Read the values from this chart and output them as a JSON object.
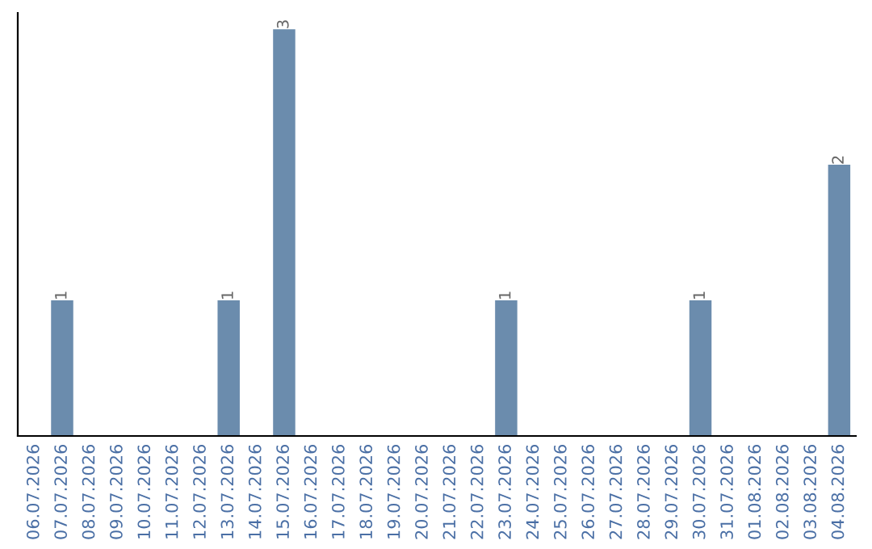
{
  "chart_data": {
    "type": "bar",
    "categories": [
      "06.07.2026",
      "07.07.2026",
      "08.07.2026",
      "09.07.2026",
      "10.07.2026",
      "11.07.2026",
      "12.07.2026",
      "13.07.2026",
      "14.07.2026",
      "15.07.2026",
      "16.07.2026",
      "17.07.2026",
      "18.07.2026",
      "19.07.2026",
      "20.07.2026",
      "21.07.2026",
      "22.07.2026",
      "23.07.2026",
      "24.07.2026",
      "25.07.2026",
      "26.07.2026",
      "27.07.2026",
      "28.07.2026",
      "29.07.2026",
      "30.07.2026",
      "31.07.2026",
      "01.08.2026",
      "02.08.2026",
      "03.08.2026",
      "04.08.2026"
    ],
    "values": [
      0,
      1,
      0,
      0,
      0,
      0,
      0,
      1,
      0,
      3,
      0,
      0,
      0,
      0,
      0,
      0,
      0,
      1,
      0,
      0,
      0,
      0,
      0,
      0,
      1,
      0,
      0,
      0,
      0,
      2
    ],
    "value_labels": [
      null,
      "1",
      null,
      null,
      null,
      null,
      null,
      "1",
      null,
      "3",
      null,
      null,
      null,
      null,
      null,
      null,
      null,
      "1",
      null,
      null,
      null,
      null,
      null,
      null,
      "1",
      null,
      null,
      null,
      null,
      "2"
    ],
    "color": "#6b8cad",
    "tick_labels": "x",
    "grid": false,
    "legend": false
  }
}
